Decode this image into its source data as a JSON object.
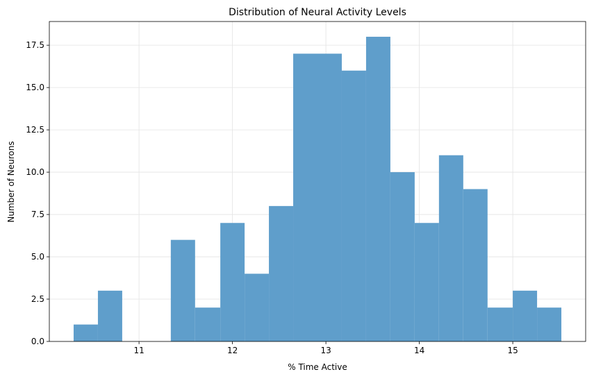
{
  "chart_data": {
    "type": "bar",
    "title": "Distribution of Neural Activity Levels",
    "xlabel": "% Time Active",
    "ylabel": "Number of Neurons",
    "bin_edges": [
      10.3,
      10.56,
      10.82,
      11.08,
      11.34,
      11.6,
      11.87,
      12.13,
      12.39,
      12.65,
      12.91,
      13.17,
      13.43,
      13.69,
      13.95,
      14.21,
      14.47,
      14.73,
      15.0,
      15.26,
      15.52
    ],
    "values": [
      1,
      3,
      0,
      0,
      6,
      2,
      7,
      4,
      8,
      17,
      17,
      16,
      18,
      10,
      7,
      11,
      9,
      2,
      3,
      2
    ],
    "xlim": [
      10.04,
      15.78
    ],
    "ylim": [
      0,
      18.9
    ],
    "x_ticks": [
      11,
      12,
      13,
      14,
      15
    ],
    "x_tick_labels": [
      "11",
      "12",
      "13",
      "14",
      "15"
    ],
    "y_ticks": [
      0,
      2.5,
      5,
      7.5,
      10,
      12.5,
      15,
      17.5
    ],
    "y_tick_labels": [
      "0.0",
      "2.5",
      "5.0",
      "7.5",
      "10.0",
      "12.5",
      "15.0",
      "17.5"
    ],
    "grid": true,
    "bar_color": "#5f9ecb",
    "grid_color": "#e3e3e3"
  }
}
